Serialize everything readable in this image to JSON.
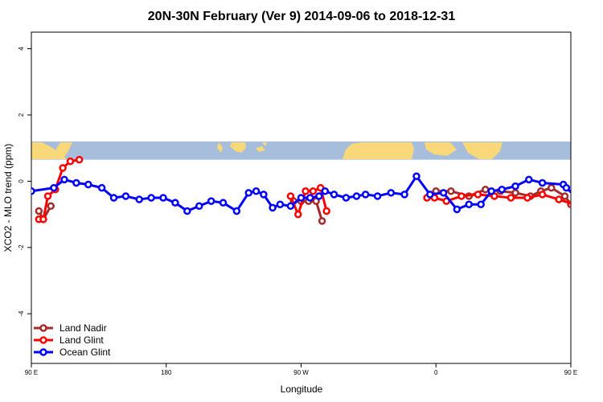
{
  "chart_data": {
    "type": "line",
    "title": "20N-30N February (Ver 9)   2014-09-06 to 2018-12-31",
    "xlabel": "Longitude",
    "ylabel": "XCO2 - MLO trend (ppm)",
    "xlim": [
      0,
      360
    ],
    "ylim": [
      -5.5,
      4.5
    ],
    "x_ticks": [
      {
        "value": 0,
        "label": "90 E"
      },
      {
        "value": 90,
        "label": "180"
      },
      {
        "value": 180,
        "label": "90 W"
      },
      {
        "value": 270,
        "label": "0"
      },
      {
        "value": 360,
        "label": "90 E"
      },
      {
        "value": 450,
        "label": "180"
      }
    ],
    "y_ticks": [
      -4,
      -2,
      0,
      2,
      4
    ],
    "grid": false,
    "legend_position": "bottom-left",
    "map_band": {
      "y_range": [
        0.65,
        1.2
      ],
      "ocean_color": "#a6bddb",
      "land_color": "#f8d878"
    },
    "series": [
      {
        "name": "Land Nadir",
        "color": "#a52a2a",
        "segments": [
          {
            "x": [
              5,
              8,
              13
            ],
            "y": [
              -0.9,
              -1.15,
              -0.75
            ]
          },
          {
            "x": [
              175,
              180,
              185,
              190,
              194
            ],
            "y": [
              -0.6,
              -0.6,
              -0.6,
              -0.6,
              -1.2
            ]
          },
          {
            "x": [
              270,
              280,
              292,
              303,
              313,
              323,
              333,
              340,
              347,
              356,
              360,
              366,
              373
            ],
            "y": [
              -0.3,
              -0.3,
              -0.45,
              -0.25,
              -0.3,
              -0.35,
              -0.45,
              -0.3,
              -0.2,
              -0.45,
              -0.7,
              -0.9,
              -1.15
            ]
          }
        ]
      },
      {
        "name": "Land Glint",
        "color": "#ff0000",
        "segments": [
          {
            "x": [
              5,
              8,
              11,
              16,
              21,
              26,
              32
            ],
            "y": [
              -1.15,
              -1.15,
              -0.45,
              -0.25,
              0.4,
              0.6,
              0.65
            ]
          },
          {
            "x": [
              173,
              178,
              183,
              188,
              193,
              197
            ],
            "y": [
              -0.45,
              -1.0,
              -0.3,
              -0.3,
              -0.2,
              -0.9
            ]
          },
          {
            "x": [
              264,
              269,
              277,
              287,
              298,
              309,
              320,
              331,
              341,
              352,
              362,
              368,
              372,
              378,
              384,
              390
            ],
            "y": [
              -0.5,
              -0.5,
              -0.6,
              -0.45,
              -0.4,
              -0.45,
              -0.5,
              -0.5,
              -0.4,
              -0.55,
              -0.7,
              -1.1,
              -1.1,
              -0.45,
              0.4,
              0.6
            ]
          }
        ]
      },
      {
        "name": "Ocean Glint",
        "color": "#0000ff",
        "segments": [
          {
            "x": [
              0,
              15,
              22,
              30,
              38,
              47,
              55,
              63,
              72,
              80,
              88,
              96,
              104,
              112,
              120,
              128,
              137,
              145,
              150,
              155,
              161,
              166,
              173,
              180,
              186,
              192,
              196,
              202,
              210,
              217,
              223,
              231,
              240,
              249,
              257,
              266,
              275,
              284,
              292,
              300,
              307,
              314,
              323,
              332,
              341,
              355,
              357,
              364,
              372,
              379,
              388,
              397,
              406,
              413,
              422,
              428,
              440,
              450
            ],
            "y": [
              -0.3,
              -0.2,
              0.05,
              -0.05,
              -0.1,
              -0.2,
              -0.5,
              -0.45,
              -0.55,
              -0.5,
              -0.5,
              -0.65,
              -0.9,
              -0.75,
              -0.6,
              -0.65,
              -0.9,
              -0.35,
              -0.3,
              -0.4,
              -0.8,
              -0.7,
              -0.75,
              -0.5,
              -0.5,
              -0.45,
              -0.3,
              -0.4,
              -0.5,
              -0.45,
              -0.4,
              -0.45,
              -0.35,
              -0.4,
              0.15,
              -0.4,
              -0.35,
              -0.85,
              -0.7,
              -0.7,
              -0.3,
              -0.25,
              -0.15,
              0.05,
              -0.05,
              -0.1,
              -0.2,
              -0.5,
              -0.45,
              -0.6,
              -0.6,
              -0.55,
              -0.5,
              -0.5,
              -0.6,
              -0.5,
              -0.55,
              -0.6
            ]
          }
        ]
      }
    ]
  }
}
